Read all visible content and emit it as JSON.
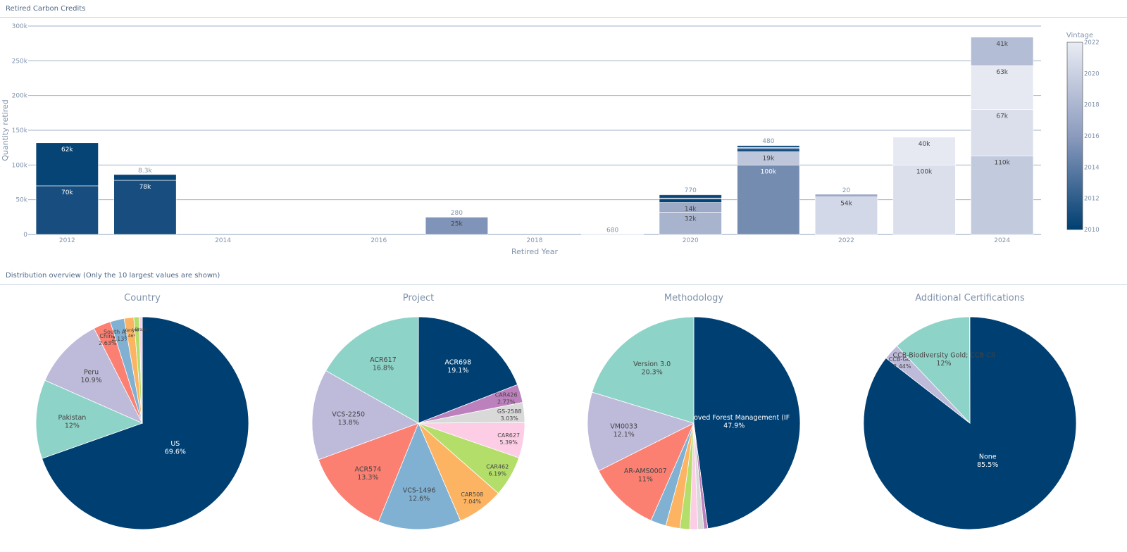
{
  "sections": {
    "top_title": "Retired Carbon Credits",
    "bottom_title": "Distribution overview (Only the 10 largest values are shown)"
  },
  "chart_data": [
    {
      "type": "bar",
      "stacked": true,
      "xlabel": "Retired Year",
      "ylabel": "Quantity retired",
      "ylim": [
        0,
        300000
      ],
      "y_ticks": [
        0,
        50000,
        100000,
        150000,
        200000,
        250000,
        300000
      ],
      "y_tick_labels": [
        "0",
        "50k",
        "100k",
        "150k",
        "200k",
        "250k",
        "300k"
      ],
      "x_ticks": [
        2012,
        2014,
        2016,
        2018,
        2020,
        2022,
        2024
      ],
      "colorbar": {
        "title": "Vintage",
        "min": 2010,
        "max": 2022,
        "ticks": [
          2010,
          2012,
          2014,
          2016,
          2018,
          2020,
          2022
        ]
      },
      "bars": [
        {
          "year": 2012,
          "total_label": "",
          "segments": [
            {
              "vintage": 2011,
              "value": 70000,
              "label": "70k"
            },
            {
              "vintage": 2010.3,
              "value": 62000,
              "label": "62k"
            }
          ]
        },
        {
          "year": 2013,
          "total_label": "8.3k",
          "segments": [
            {
              "vintage": 2011,
              "value": 78000,
              "label": "78k"
            },
            {
              "vintage": 2010.3,
              "value": 8300,
              "label": ""
            }
          ]
        },
        {
          "year": 2017,
          "total_label": "280",
          "segments": [
            {
              "vintage": 2015.5,
              "value": 25000,
              "label": "25k"
            },
            {
              "vintage": 2013,
              "value": 280,
              "label": ""
            }
          ]
        },
        {
          "year": 2019,
          "total_label": "680",
          "segments": [
            {
              "vintage": 2013,
              "value": 680,
              "label": ""
            }
          ]
        },
        {
          "year": 2020,
          "total_label": "770",
          "segments": [
            {
              "vintage": 2017.8,
              "value": 32000,
              "label": "32k"
            },
            {
              "vintage": 2017,
              "value": 14000,
              "label": "14k"
            },
            {
              "vintage": 2010.2,
              "value": 5000,
              "label": ""
            },
            {
              "vintage": 2014.5,
              "value": 1500,
              "label": ""
            },
            {
              "vintage": 2010.4,
              "value": 4500,
              "label": ""
            },
            {
              "vintage": 2013,
              "value": 770,
              "label": ""
            }
          ]
        },
        {
          "year": 2021,
          "total_label": "480",
          "segments": [
            {
              "vintage": 2015,
              "value": 100000,
              "label": "100k"
            },
            {
              "vintage": 2019.2,
              "value": 19000,
              "label": "19k"
            },
            {
              "vintage": 2011,
              "value": 4500,
              "label": ""
            },
            {
              "vintage": 2015.5,
              "value": 2000,
              "label": ""
            },
            {
              "vintage": 2010.3,
              "value": 2500,
              "label": ""
            },
            {
              "vintage": 2013,
              "value": 480,
              "label": ""
            }
          ]
        },
        {
          "year": 2022,
          "total_label": "20",
          "segments": [
            {
              "vintage": 2020.5,
              "value": 54000,
              "label": "54k"
            },
            {
              "vintage": 2017,
              "value": 4000,
              "label": ""
            },
            {
              "vintage": 2013,
              "value": 20,
              "label": ""
            }
          ]
        },
        {
          "year": 2023,
          "total_label": "",
          "segments": [
            {
              "vintage": 2021,
              "value": 100000,
              "label": "100k"
            },
            {
              "vintage": 2021.8,
              "value": 40000,
              "label": "40k"
            }
          ]
        },
        {
          "year": 2024,
          "total_label": "",
          "segments": [
            {
              "vintage": 2019.5,
              "value": 113000,
              "label": "110k"
            },
            {
              "vintage": 2021,
              "value": 67000,
              "label": "67k"
            },
            {
              "vintage": 2021.8,
              "value": 63000,
              "label": "63k"
            },
            {
              "vintage": 2018.5,
              "value": 41000,
              "label": "41k"
            }
          ]
        }
      ]
    },
    {
      "type": "pie",
      "title": "Country",
      "slices": [
        {
          "label": "US",
          "percent": 69.6,
          "pct_text": "69.6%",
          "color": "#003f72",
          "text_color": "#ffffff"
        },
        {
          "label": "Pakistan",
          "percent": 12,
          "pct_text": "12%",
          "color": "#8ed3c7",
          "text_color": "#444444"
        },
        {
          "label": "Peru",
          "percent": 10.9,
          "pct_text": "10.9%",
          "color": "#bebada",
          "text_color": "#444444"
        },
        {
          "label": "China",
          "percent": 2.63,
          "pct_text": "2.63%",
          "color": "#fb8072",
          "text_color": "#444444"
        },
        {
          "label": "South Africa",
          "percent": 2.13,
          "pct_text": "2.13%",
          "color": "#80b1d3",
          "text_color": "#444444"
        },
        {
          "label": "Kenya",
          "percent": 1.46,
          "pct_text": "1.46%",
          "color": "#fdb462",
          "text_color": "#444444"
        },
        {
          "label": "India",
          "percent": 0.8,
          "pct_text": "",
          "color": "#b3de69",
          "text_color": "#444444"
        },
        {
          "label": "Brazil",
          "percent": 0.48,
          "pct_text": "",
          "color": "#fccde5",
          "text_color": "#444444"
        }
      ]
    },
    {
      "type": "pie",
      "title": "Project",
      "slices": [
        {
          "label": "ACR698",
          "percent": 19.1,
          "pct_text": "19.1%",
          "color": "#003f72",
          "text_color": "#ffffff"
        },
        {
          "label": "CAR426",
          "percent": 2.77,
          "pct_text": "2.77%",
          "color": "#bc80bd",
          "text_color": "#444444"
        },
        {
          "label": "GS-2588",
          "percent": 3.03,
          "pct_text": "3.03%",
          "color": "#d9d9d9",
          "text_color": "#444444"
        },
        {
          "label": "CAR627",
          "percent": 5.39,
          "pct_text": "5.39%",
          "color": "#fccde5",
          "text_color": "#444444"
        },
        {
          "label": "CAR462",
          "percent": 6.19,
          "pct_text": "6.19%",
          "color": "#b3de69",
          "text_color": "#444444"
        },
        {
          "label": "CAR508",
          "percent": 7.04,
          "pct_text": "7.04%",
          "color": "#fdb462",
          "text_color": "#444444"
        },
        {
          "label": "VCS-1496",
          "percent": 12.6,
          "pct_text": "12.6%",
          "color": "#80b1d3",
          "text_color": "#444444"
        },
        {
          "label": "ACR574",
          "percent": 13.3,
          "pct_text": "13.3%",
          "color": "#fb8072",
          "text_color": "#444444"
        },
        {
          "label": "VCS-2250",
          "percent": 13.8,
          "pct_text": "13.8%",
          "color": "#bebada",
          "text_color": "#444444"
        },
        {
          "label": "ACR617",
          "percent": 16.8,
          "pct_text": "16.8%",
          "color": "#8ed3c7",
          "text_color": "#444444"
        }
      ]
    },
    {
      "type": "pie",
      "title": "Methodology",
      "slices": [
        {
          "label": "Improved Forest Management (IF",
          "percent": 47.9,
          "pct_text": "47.9%",
          "color": "#003f72",
          "text_color": "#ffffff"
        },
        {
          "label": "",
          "percent": 0.6,
          "pct_text": "",
          "color": "#bc80bd",
          "text_color": "#444444"
        },
        {
          "label": "",
          "percent": 0.9,
          "pct_text": "",
          "color": "#d9d9d9",
          "text_color": "#444444"
        },
        {
          "label": "",
          "percent": 1.2,
          "pct_text": "",
          "color": "#fccde5",
          "text_color": "#444444"
        },
        {
          "label": "",
          "percent": 1.5,
          "pct_text": "",
          "color": "#b3de69",
          "text_color": "#444444"
        },
        {
          "label": "",
          "percent": 2.16,
          "pct_text": "",
          "color": "#fdb462",
          "text_color": "#444444"
        },
        {
          "label": "",
          "percent": 2.34,
          "pct_text": "",
          "color": "#80b1d3",
          "text_color": "#444444"
        },
        {
          "label": "AR-AMS0007",
          "percent": 11,
          "pct_text": "11%",
          "color": "#fb8072",
          "text_color": "#444444"
        },
        {
          "label": "VM0033",
          "percent": 12.1,
          "pct_text": "12.1%",
          "color": "#bebada",
          "text_color": "#444444"
        },
        {
          "label": "Version 3.0",
          "percent": 20.3,
          "pct_text": "20.3%",
          "color": "#8ed3c7",
          "text_color": "#444444"
        }
      ]
    },
    {
      "type": "pie",
      "title": "Additional Certifications",
      "slices": [
        {
          "label": "None",
          "percent": 85.5,
          "pct_text": "85.5%",
          "color": "#003f72",
          "text_color": "#ffffff"
        },
        {
          "label": "CCB-Gold",
          "percent": 2.44,
          "pct_text": "2.44%",
          "color": "#bebada",
          "text_color": "#444444"
        },
        {
          "label": "CCB-Biodiversity Gold; CCB-Cli",
          "percent": 12,
          "pct_text": "12%",
          "color": "#8ed3c7",
          "text_color": "#444444"
        }
      ]
    }
  ]
}
